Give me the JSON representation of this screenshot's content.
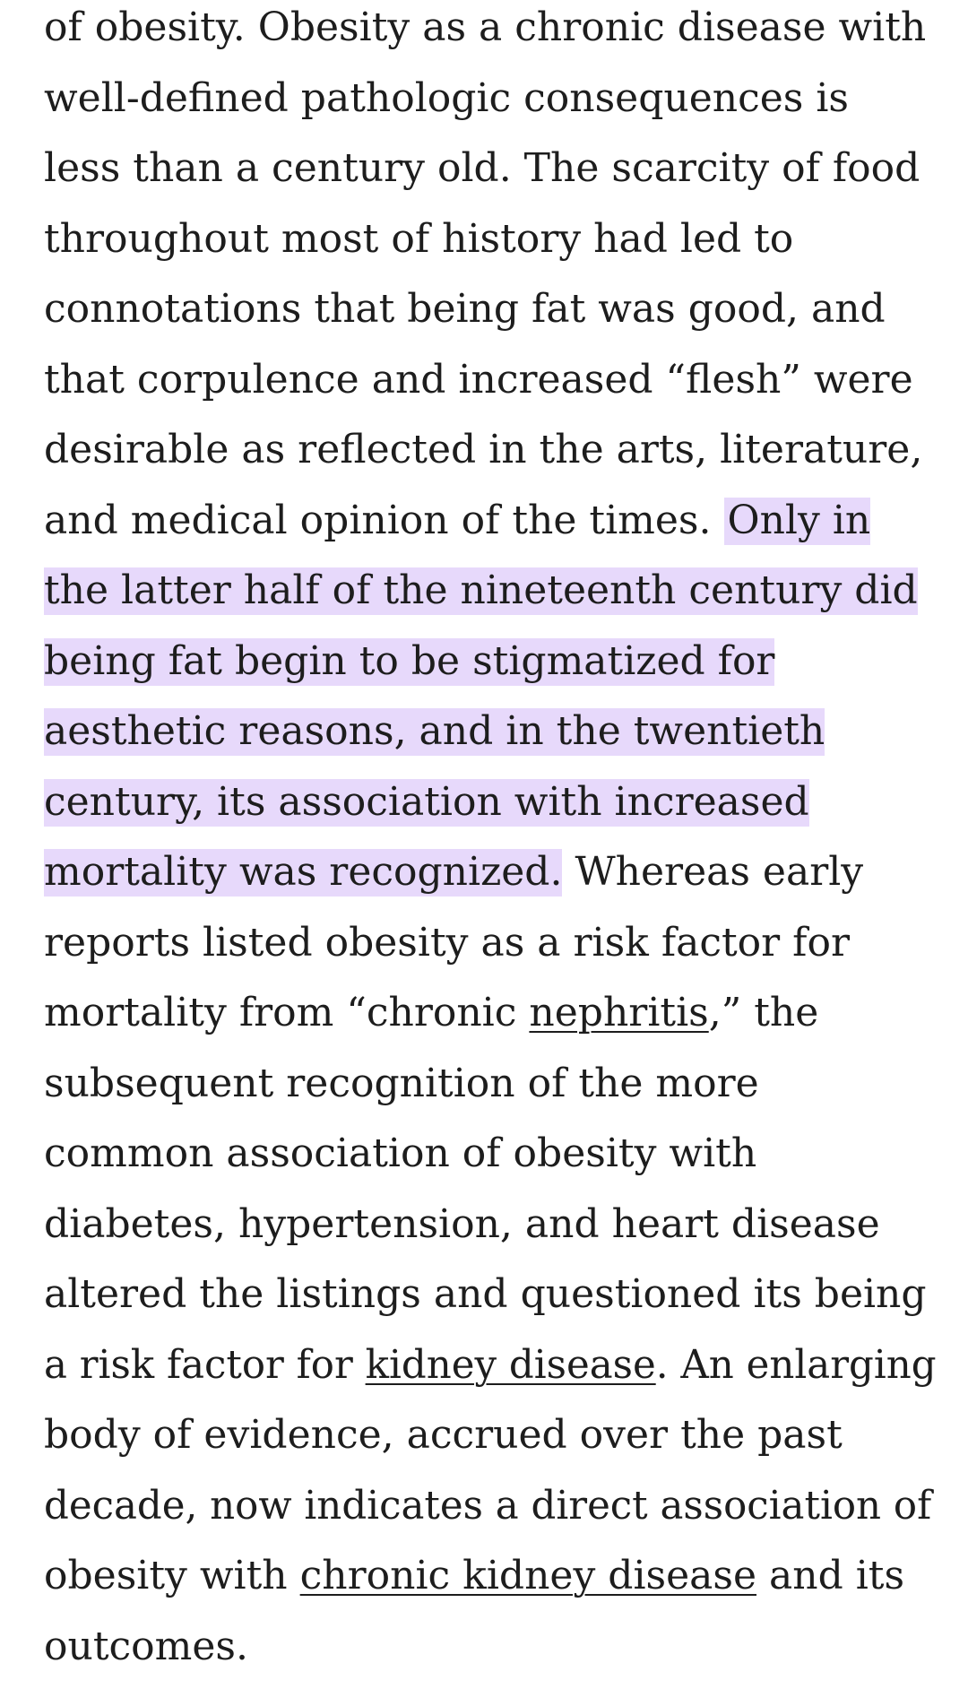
{
  "article": {
    "lines": [
      "of obesity. Obesity as a chronic disease with",
      "well-defined pathologic consequences is",
      "less than a century old. The scarcity of food",
      "throughout most of history had led to",
      "connotations that being fat was good, and",
      "that corpulence and increased “flesh” were",
      "desirable as reflected in the arts, literature,",
      "and medical opinion of the times.",
      "Only in",
      "the latter half of the nineteenth century did",
      "being fat begin to be stigmatized for",
      "aesthetic reasons, and in the twentieth",
      "century, its association with increased",
      "mortality was recognized.",
      "Whereas early",
      "reports listed obesity as a risk factor for",
      "mortality from “chronic",
      "nephritis",
      ",” the",
      "subsequent recognition of the more",
      "common association of obesity with",
      "diabetes, hypertension, and heart disease",
      "altered the listings and questioned its being",
      "a risk factor for",
      "kidney disease",
      ". An enlarging",
      "body of evidence, accrued over the past",
      "decade, now indicates a direct association of",
      "obesity with",
      "chronic kidney disease",
      "and its",
      "outcomes."
    ],
    "colors": {
      "text": "#1d1d1d",
      "highlight": "#e7d9fb",
      "background": "#ffffff"
    }
  }
}
